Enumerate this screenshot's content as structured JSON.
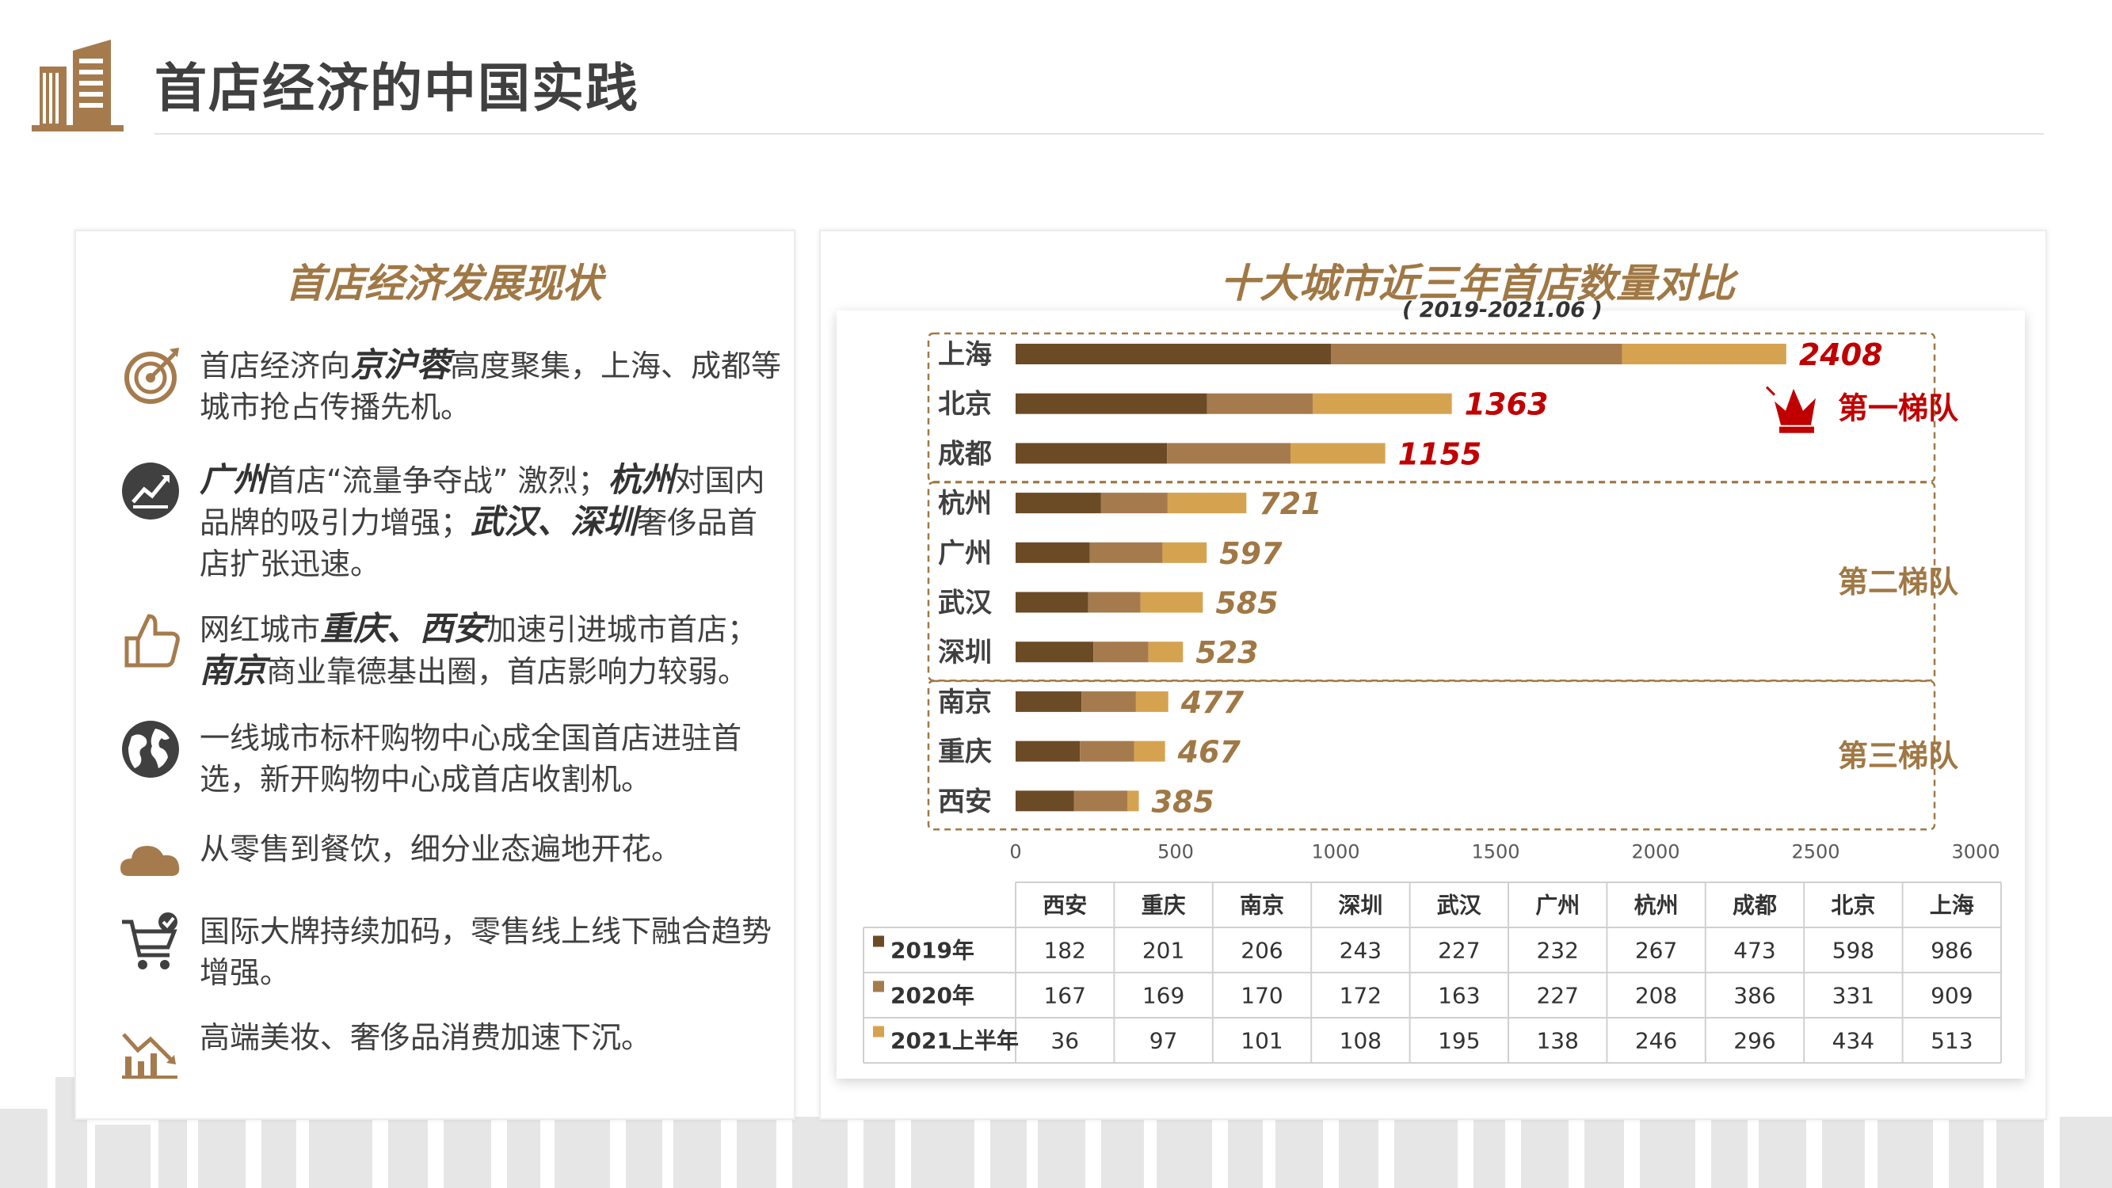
{
  "header": {
    "title": "首店经济的中国实践"
  },
  "left": {
    "title": "首店经济发展现状",
    "items": [
      {
        "icon": "target-icon",
        "parts": [
          {
            "t": "首店经济向"
          },
          {
            "t": "京沪蓉",
            "em": true
          },
          {
            "t": "高度聚集，上海、成都等城市抢占传播先机。"
          }
        ]
      },
      {
        "icon": "trend-chart-icon",
        "parts": [
          {
            "t": "广州",
            "em": true
          },
          {
            "t": "首店“流量争夺战” 激烈；"
          },
          {
            "t": "杭州",
            "em": true
          },
          {
            "t": "对国内品牌的吸引力增强；"
          },
          {
            "t": "武汉、深圳",
            "em": true
          },
          {
            "t": "奢侈品首店扩张迅速。"
          }
        ]
      },
      {
        "icon": "thumbs-up-icon",
        "parts": [
          {
            "t": "网红城市"
          },
          {
            "t": "重庆、西安",
            "em": true
          },
          {
            "t": "加速引进城市首店；"
          },
          {
            "t": "南京",
            "em": true
          },
          {
            "t": "商业靠德基出圈，首店影响力较弱。"
          }
        ]
      },
      {
        "icon": "globe-icon",
        "parts": [
          {
            "t": "一线城市标杆购物中心成全国首店进驻首选，新开购物中心成首店收割机。"
          }
        ]
      },
      {
        "icon": "cloud-icon",
        "parts": [
          {
            "t": "从零售到餐饮，细分业态遍地开花。"
          }
        ]
      },
      {
        "icon": "shopping-cart-icon",
        "parts": [
          {
            "t": "国际大牌持续加码，零售线上线下融合趋势增强。"
          }
        ]
      },
      {
        "icon": "falling-market-icon",
        "parts": [
          {
            "t": "高端美妆、奢侈品消费加速下沉。"
          }
        ]
      }
    ]
  },
  "chart_data": {
    "type": "bar",
    "orientation": "horizontal",
    "stacked": true,
    "title": "十大城市近三年首店数量对比",
    "subtitle": "( 2019-2021.06 )",
    "categories": [
      "上海",
      "北京",
      "成都",
      "杭州",
      "广州",
      "武汉",
      "深圳",
      "南京",
      "重庆",
      "西安"
    ],
    "series": [
      {
        "name": "2019年",
        "color": "#6b4a26",
        "values": [
          986,
          598,
          473,
          267,
          232,
          227,
          243,
          206,
          201,
          182
        ]
      },
      {
        "name": "2020年",
        "color": "#a57b4e",
        "values": [
          909,
          331,
          386,
          208,
          227,
          163,
          172,
          170,
          169,
          167
        ]
      },
      {
        "name": "2021上半年",
        "color": "#d5a350",
        "values": [
          513,
          434,
          296,
          246,
          138,
          195,
          108,
          101,
          97,
          36
        ]
      }
    ],
    "totals": [
      "2408",
      "1363",
      "1155",
      "721",
      "597",
      "585",
      "523",
      "477",
      "467",
      "385"
    ],
    "xlim": [
      0,
      3000
    ],
    "xticks": [
      "0",
      "500",
      "1000",
      "1500",
      "2000",
      "2500",
      "3000"
    ],
    "tiers": [
      {
        "label": "第一梯队",
        "from": 0,
        "to": 2,
        "icon": "crown-icon"
      },
      {
        "label": "第二梯队",
        "from": 3,
        "to": 6
      },
      {
        "label": "第三梯队",
        "from": 7,
        "to": 9
      }
    ],
    "colors": {
      "top_label": "#c00000",
      "other_label": "#a07845",
      "tier_border": "#a07845"
    },
    "table": {
      "columns": [
        "西安",
        "重庆",
        "南京",
        "深圳",
        "武汉",
        "广州",
        "杭州",
        "成都",
        "北京",
        "上海"
      ],
      "rows": [
        {
          "name": "2019年",
          "values": [
            "182",
            "201",
            "206",
            "243",
            "227",
            "232",
            "267",
            "473",
            "598",
            "986"
          ]
        },
        {
          "name": "2020年",
          "values": [
            "167",
            "169",
            "170",
            "172",
            "163",
            "227",
            "208",
            "386",
            "331",
            "909"
          ]
        },
        {
          "name": "2021上半年",
          "values": [
            "36",
            "97",
            "101",
            "108",
            "195",
            "138",
            "246",
            "296",
            "434",
            "513"
          ]
        }
      ]
    }
  }
}
